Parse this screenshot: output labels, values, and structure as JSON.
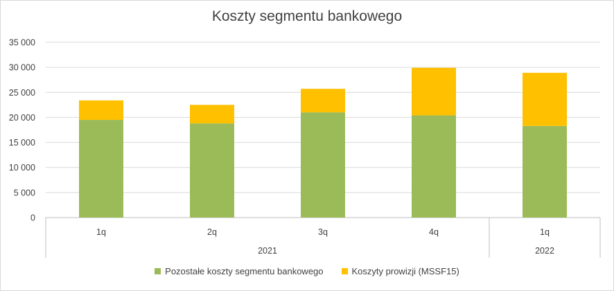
{
  "chart_data": {
    "type": "bar",
    "stacked": true,
    "title": "Koszty segmentu bankowego",
    "xlabel": "",
    "ylabel": "",
    "ylim": [
      0,
      35000
    ],
    "yticks": [
      0,
      5000,
      10000,
      15000,
      20000,
      25000,
      30000,
      35000
    ],
    "ytick_labels": [
      "0",
      "5 000",
      "10 000",
      "15 000",
      "20 000",
      "25 000",
      "30 000",
      "35 000"
    ],
    "categories": [
      "1q",
      "2q",
      "3q",
      "4q",
      "1q"
    ],
    "groups": [
      {
        "label": "2021",
        "categories": [
          "1q",
          "2q",
          "3q",
          "4q"
        ]
      },
      {
        "label": "2022",
        "categories": [
          "1q"
        ]
      }
    ],
    "series": [
      {
        "name": "Pozostałe koszty segmentu bankowego",
        "color": "#9bbb59",
        "values": [
          19500,
          18800,
          21000,
          20400,
          18300
        ]
      },
      {
        "name": "Koszyty prowizji (MSSF15)",
        "color": "#ffc000",
        "values": [
          3900,
          3700,
          4700,
          9500,
          10600
        ]
      }
    ],
    "grid": true,
    "legend": "bottom"
  }
}
